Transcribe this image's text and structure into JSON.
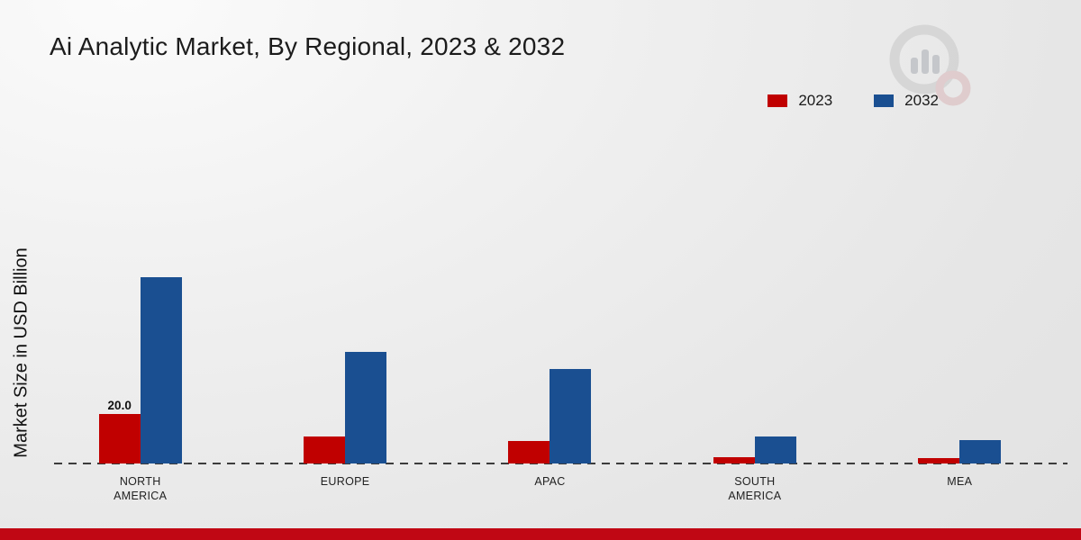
{
  "title": "Ai Analytic Market, By Regional, 2023 & 2032",
  "ylabel": "Market Size in USD Billion",
  "legend": [
    {
      "label": "2023",
      "color": "#c00000"
    },
    {
      "label": "2032",
      "color": "#1a4f91"
    }
  ],
  "chart_data": {
    "type": "bar",
    "title": "Ai Analytic Market, By Regional, 2023 & 2032",
    "ylabel": "Market Size in USD Billion",
    "categories": [
      "NORTH AMERICA",
      "EUROPE",
      "APAC",
      "SOUTH AMERICA",
      "MEA"
    ],
    "series": [
      {
        "name": "2023",
        "color": "#c00000",
        "values": [
          20.0,
          11.0,
          9.0,
          2.5,
          2.0
        ]
      },
      {
        "name": "2032",
        "color": "#1a4f91",
        "values": [
          75.0,
          45.0,
          38.0,
          11.0,
          9.5
        ]
      }
    ],
    "annotations": [
      {
        "series": "2023",
        "category": "NORTH AMERICA",
        "text": "20.0"
      }
    ],
    "ylim": [
      0,
      80
    ],
    "grid": false,
    "legend_position": "top-right",
    "baseline_style": "dashed"
  }
}
